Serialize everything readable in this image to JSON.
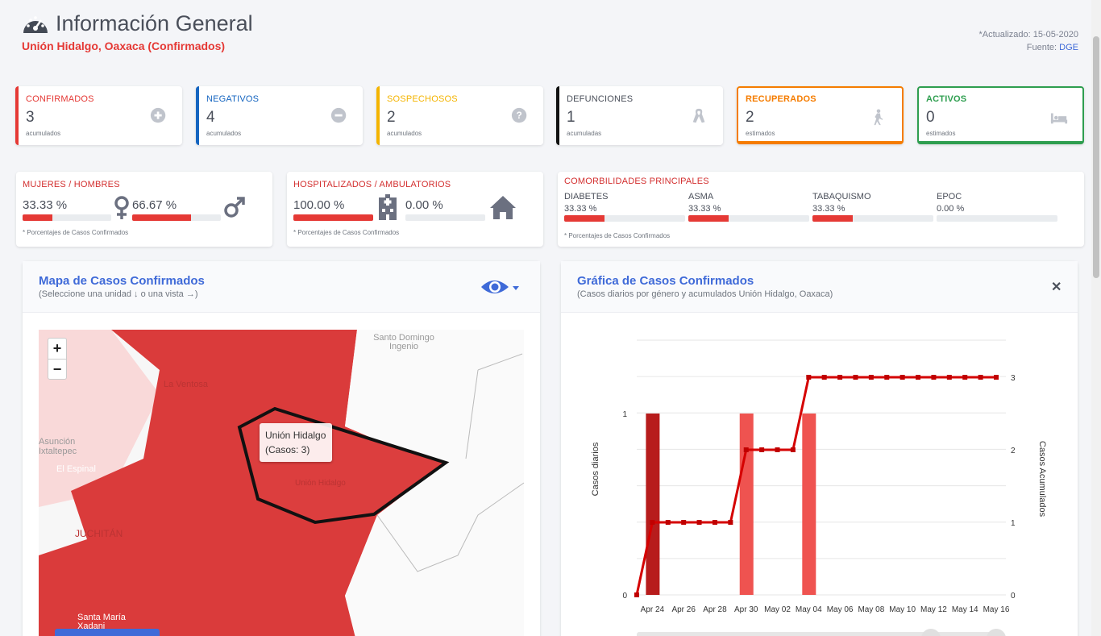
{
  "header": {
    "title": "Información General",
    "subtitle": "Unión Hidalgo, Oaxaca (Confirmados)",
    "updated": "*Actualizado: 15-05-2020",
    "source_label": "Fuente:",
    "source_link": "DGE"
  },
  "stats": [
    {
      "label": "CONFIRMADOS",
      "value": "3",
      "caption": "acumulados",
      "color": "#e53935",
      "icon": "plus-circle-icon"
    },
    {
      "label": "NEGATIVOS",
      "value": "4",
      "caption": "acumulados",
      "color": "#1565c0",
      "icon": "minus-circle-icon"
    },
    {
      "label": "SOSPECHOSOS",
      "value": "2",
      "caption": "acumulados",
      "color": "#f4b400",
      "icon": "question-circle-icon"
    },
    {
      "label": "DEFUNCIONES",
      "value": "1",
      "caption": "acumuladas",
      "color": "#111111",
      "icon": "ribbon-icon"
    },
    {
      "label": "RECUPERADOS",
      "value": "2",
      "caption": "estimados",
      "color": "#f57c00",
      "icon": "walking-icon"
    },
    {
      "label": "ACTIVOS",
      "value": "0",
      "caption": "estimados",
      "color": "#2e9e4f",
      "icon": "bed-icon"
    }
  ],
  "gender": {
    "label": "MUJERES / HOMBRES",
    "women_pct": "33.33 %",
    "women_frac": 0.3333,
    "men_pct": "66.67 %",
    "men_frac": 0.6667,
    "note": "* Porcentajes  de Casos Confirmados"
  },
  "hospital": {
    "label": "HOSPITALIZADOS / AMBULATORIOS",
    "hosp_pct": "100.00 %",
    "hosp_frac": 1.0,
    "amb_pct": "0.00 %",
    "amb_frac": 0.0,
    "note": "* Porcentajes  de Casos Confirmados"
  },
  "comorbid": {
    "label": "COMORBILIDADES PRINCIPALES",
    "items": [
      {
        "name": "DIABETES",
        "pct": "33.33 %",
        "frac": 0.3333
      },
      {
        "name": "ASMA",
        "pct": "33.33 %",
        "frac": 0.3333
      },
      {
        "name": "TABAQUISMO",
        "pct": "33.33 %",
        "frac": 0.3333
      },
      {
        "name": "EPOC",
        "pct": "0.00 %",
        "frac": 0.0
      }
    ],
    "note": "* Porcentajes  de Casos Confirmados"
  },
  "map_panel": {
    "title": "Mapa de Casos Confirmados",
    "subtitle": "(Seleccione una unidad ↓ o una vista →)",
    "zoom_in": "+",
    "zoom_out": "−",
    "tooltip_name": "Unión Hidalgo",
    "tooltip_cases": "(Casos: 3)",
    "places": [
      "Santo Domingo Ingenio",
      "La Ventosa",
      "Asunción Ixtaltepec",
      "El Espinal",
      "JUCHITÁN",
      "Unión Hidalgo",
      "Santa María Xadani"
    ]
  },
  "chart_panel": {
    "title": "Gráfica de Casos Confirmados",
    "subtitle": "(Casos diarios por género y acumulados Unión Hidalgo, Oaxaca)",
    "close": "✕"
  },
  "chart_data": {
    "type": "bar",
    "title": "",
    "xlabel": "",
    "ylabel": "Casos diarios",
    "y2label": "Casos Acumulados",
    "x_ticks": [
      "Apr 24",
      "Apr 26",
      "Apr 28",
      "Apr 30",
      "May 02",
      "May 04",
      "May 06",
      "May 08",
      "May 10",
      "May 12",
      "May 14",
      "May 16"
    ],
    "ylim": [
      0,
      1
    ],
    "y2lim": [
      0,
      3
    ],
    "y_ticks": [
      "0",
      "1"
    ],
    "y2_ticks": [
      "0",
      "1",
      "2",
      "3"
    ],
    "dates": [
      "Apr 23",
      "Apr 24",
      "Apr 25",
      "Apr 26",
      "Apr 27",
      "Apr 28",
      "Apr 29",
      "Apr 30",
      "May 01",
      "May 02",
      "May 03",
      "May 04",
      "May 05",
      "May 06",
      "May 07",
      "May 08",
      "May 09",
      "May 10",
      "May 11",
      "May 12",
      "May 13",
      "May 14",
      "May 15",
      "May 16"
    ],
    "bars": [
      {
        "date": "Apr 24",
        "value": 1,
        "color": "#b71c1c"
      },
      {
        "date": "Apr 30",
        "value": 1,
        "color": "#ef5350"
      },
      {
        "date": "May 04",
        "value": 1,
        "color": "#ef5350"
      }
    ],
    "series": [
      {
        "name": "Casos Acumulados",
        "values": [
          0,
          1,
          1,
          1,
          1,
          1,
          1,
          2,
          2,
          2,
          2,
          3,
          3,
          3,
          3,
          3,
          3,
          3,
          3,
          3,
          3,
          3,
          3,
          3
        ]
      }
    ]
  }
}
